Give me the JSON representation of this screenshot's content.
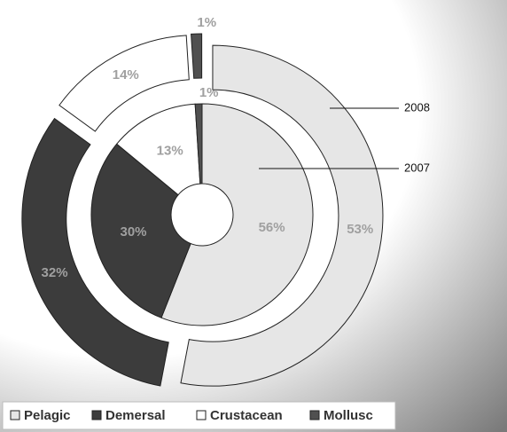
{
  "chart_data": {
    "type": "doughnut",
    "categories": [
      "Pelagic",
      "Demersal",
      "Crustacean",
      "Mollusc"
    ],
    "colors": [
      "#e6e6e6",
      "#3c3c3c",
      "#ffffff",
      "#505050"
    ],
    "series": [
      {
        "name": "2007",
        "values": [
          56,
          30,
          13,
          1
        ],
        "value_labels": [
          "56%",
          "30%",
          "13%",
          "1%"
        ]
      },
      {
        "name": "2008",
        "values": [
          53,
          32,
          14,
          1
        ],
        "value_labels": [
          "53%",
          "32%",
          "14%",
          "1%"
        ]
      }
    ],
    "legend": "bottom"
  }
}
